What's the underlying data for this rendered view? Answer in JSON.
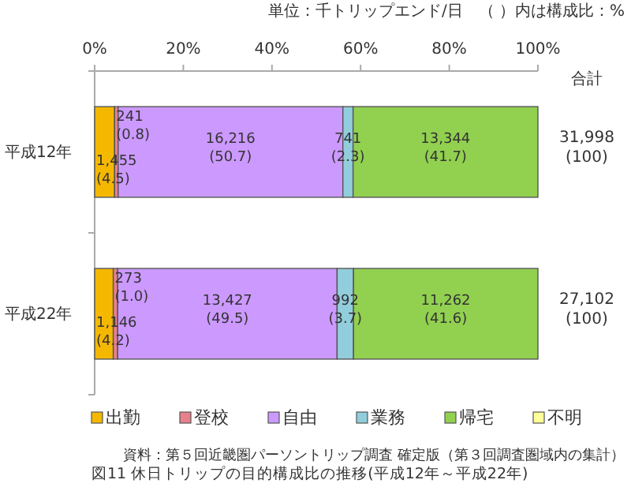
{
  "chart_data": {
    "type": "bar",
    "orientation": "horizontal",
    "stacked": true,
    "title": "図11 休日トリップの目的構成比の推移(平成12年～平成22年)",
    "categories": [
      "平成12年",
      "平成22年"
    ],
    "series": [
      {
        "name": "出勤",
        "color": "#f5b800",
        "values": [
          4.5,
          4.2
        ],
        "value_labels": [
          "1,455\n(4.5)",
          "1,146\n(4.2)"
        ]
      },
      {
        "name": "登校",
        "color": "#e8808c",
        "values": [
          0.8,
          1.0
        ],
        "value_labels": [
          "241\n(0.8)",
          "273\n(1.0)"
        ]
      },
      {
        "name": "自由",
        "color": "#cc99ff",
        "values": [
          50.7,
          49.5
        ],
        "value_labels": [
          "16,216\n(50.7)",
          "13,427\n(49.5)"
        ]
      },
      {
        "name": "業務",
        "color": "#92cddc",
        "values": [
          2.3,
          3.7
        ],
        "value_labels": [
          "741\n(2.3)",
          "992\n(3.7)"
        ]
      },
      {
        "name": "帰宅",
        "color": "#92d050",
        "values": [
          41.7,
          41.6
        ],
        "value_labels": [
          "13,344\n(41.7)",
          "11,262\n(41.6)"
        ]
      },
      {
        "name": "不明",
        "color": "#ffff99",
        "values": [
          0,
          0
        ],
        "value_labels": [
          null,
          null
        ]
      }
    ],
    "totals": [
      "31,998\n(100)",
      "27,102\n(100)"
    ],
    "xlim": [
      0,
      100
    ],
    "xticks": [
      {
        "value": 0,
        "label": "0%"
      },
      {
        "value": 20,
        "label": "20%"
      },
      {
        "value": 40,
        "label": "40%"
      },
      {
        "value": 60,
        "label": "60%"
      },
      {
        "value": 80,
        "label": "80%"
      },
      {
        "value": 100,
        "label": "100%"
      }
    ],
    "legend": "bottom",
    "annotations": [
      "単位：千トリップエンド/日　（ ）内は構成比：%",
      "合計",
      "資料：第５回近畿圏パーソントリップ調査 確定版（第３回調査圏域内の集計）"
    ]
  }
}
